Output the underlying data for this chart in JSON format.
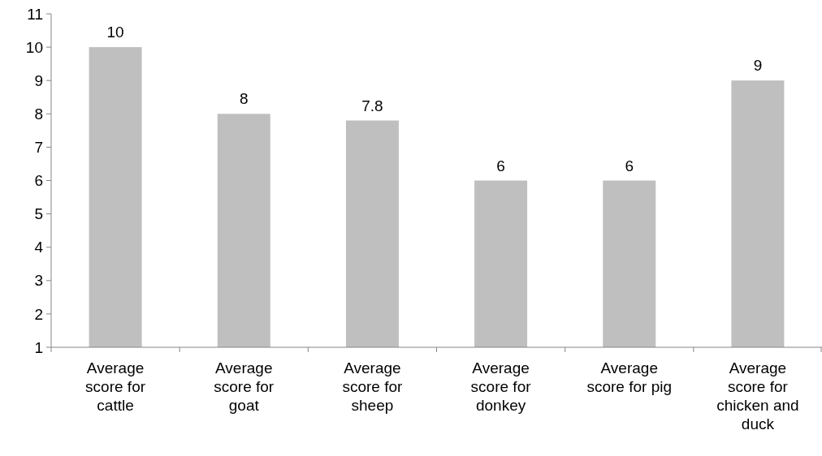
{
  "chart_data": {
    "type": "bar",
    "categories": [
      "Average score for cattle",
      "Average score for goat",
      "Average score for sheep",
      "Average score for donkey",
      "Average score for pig",
      "Average score for chicken and duck"
    ],
    "values": [
      10,
      8,
      7.8,
      6,
      6,
      9
    ],
    "color": "#bfbfbf",
    "ylim": [
      1,
      11
    ],
    "yticks": [
      1,
      2,
      3,
      4,
      5,
      6,
      7,
      8,
      9,
      10,
      11
    ],
    "data_labels": true,
    "grid": false
  }
}
